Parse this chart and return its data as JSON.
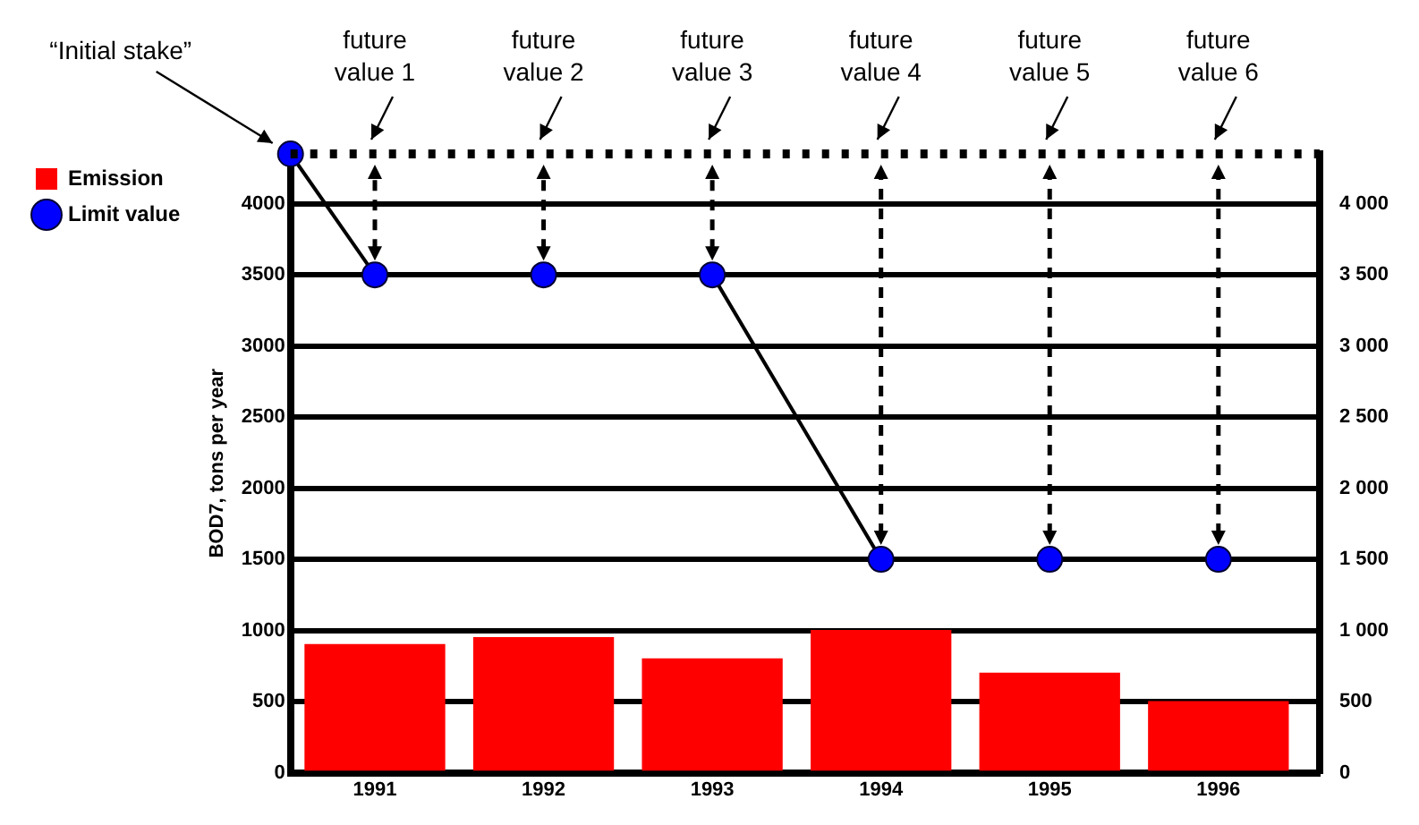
{
  "chart_data": {
    "type": "bar",
    "ylabel": "BOD7, tons per year",
    "x": [
      1991,
      1992,
      1993,
      1994,
      1995,
      1996
    ],
    "series": [
      {
        "name": "Emission",
        "color": "#ff0000",
        "values": [
          900,
          950,
          800,
          1000,
          700,
          500
        ]
      },
      {
        "name": "Limit value",
        "type": "line",
        "color": "#0000ff",
        "marker": "circle",
        "line_style": "solid",
        "x": [
          1990.5,
          1991,
          1992,
          1993,
          1994,
          1995,
          1996
        ],
        "values": [
          4350,
          3500,
          3500,
          3500,
          1500,
          1500,
          1500
        ]
      }
    ],
    "xlim": [
      1990.5,
      1996.6
    ],
    "xticks": [
      1991,
      1992,
      1993,
      1994,
      1995,
      1996
    ],
    "ylim": [
      0,
      4350
    ],
    "yticks": [
      0,
      500,
      1000,
      1500,
      2000,
      2500,
      3000,
      3500,
      4000
    ],
    "y2lim": [
      0,
      4350
    ],
    "y2ticks": [
      0,
      500,
      {
        "value": 1000,
        "label": "1 000"
      },
      {
        "value": 1500,
        "label": "1 500"
      },
      {
        "value": 2000,
        "label": "2 000"
      },
      {
        "value": 2500,
        "label": "2 500"
      },
      {
        "value": 3000,
        "label": "3 000"
      },
      {
        "value": 3500,
        "label": "3 500"
      },
      {
        "value": 4000,
        "label": "4 000"
      }
    ],
    "ref_lines": [
      {
        "axis": "y",
        "value": 4350,
        "line_style": "dotted",
        "color": "#000000"
      }
    ],
    "annotations": [
      "“Initial stake”",
      {
        "text": "future value 1",
        "x": 1991,
        "y": 4350
      },
      {
        "text": "future value 2",
        "x": 1992,
        "y": 4350
      },
      {
        "text": "future value 3",
        "x": 1993,
        "y": 4350
      },
      {
        "text": "future value 4",
        "x": 1994,
        "y": 4350
      },
      {
        "text": "future value 5",
        "x": 1995,
        "y": 4350
      },
      {
        "text": "future value 6",
        "x": 1996,
        "y": 4350
      }
    ],
    "grid": "y",
    "legend": "top left"
  }
}
